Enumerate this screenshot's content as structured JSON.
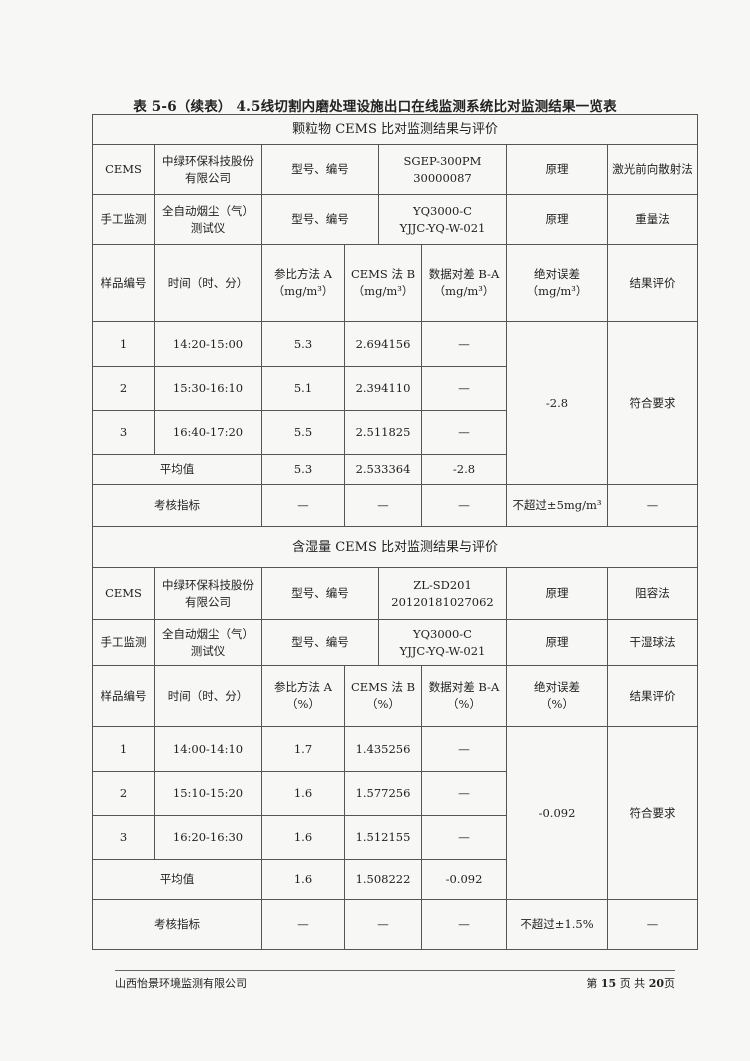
{
  "title": "表 5-6（续表） 4.5线切割内磨处理设施出口在线监测系统比对监测结果一览表",
  "sections": [
    {
      "heading": "颗粒物 CEMS 比对监测结果与评价",
      "cems": {
        "label": "CEMS",
        "company": "中绿环保科技股份有限公司",
        "model_label": "型号、编号",
        "model": "SGEP-300PM\n30000087",
        "principle_label": "原理",
        "principle": "激光前向散射法"
      },
      "manual": {
        "label": "手工监测",
        "instrument": "全自动烟尘（气）测试仪",
        "model_label": "型号、编号",
        "model": "YQ3000-C\nYJJC-YQ-W-021",
        "principle_label": "原理",
        "principle": "重量法"
      },
      "headers": [
        "样品编号",
        "时间（时、分）",
        "参比方法 A\n（mg/m³）",
        "CEMS 法 B\n（mg/m³）",
        "数据对差 B-A\n（mg/m³）",
        "绝对误差\n（mg/m³）",
        "结果评价"
      ],
      "rows": [
        {
          "no": "1",
          "time": "14:20-15:00",
          "a": "5.3",
          "b": "2.694156",
          "diff": "—"
        },
        {
          "no": "2",
          "time": "15:30-16:10",
          "a": "5.1",
          "b": "2.394110",
          "diff": "—"
        },
        {
          "no": "3",
          "time": "16:40-17:20",
          "a": "5.5",
          "b": "2.511825",
          "diff": "—"
        }
      ],
      "abs_error": "-2.8",
      "evaluation": "符合要求",
      "avg": {
        "label": "平均值",
        "a": "5.3",
        "b": "2.533364",
        "diff": "-2.8"
      },
      "check": {
        "label": "考核指标",
        "a": "—",
        "b": "—",
        "diff": "—",
        "limit": "不超过±5mg/m³",
        "eval": "—"
      }
    },
    {
      "heading": "含湿量 CEMS 比对监测结果与评价",
      "cems": {
        "label": "CEMS",
        "company": "中绿环保科技股份有限公司",
        "model_label": "型号、编号",
        "model": "ZL-SD201\n20120181027062",
        "principle_label": "原理",
        "principle": "阻容法"
      },
      "manual": {
        "label": "手工监测",
        "instrument": "全自动烟尘（气）测试仪",
        "model_label": "型号、编号",
        "model": "YQ3000-C\nYJJC-YQ-W-021",
        "principle_label": "原理",
        "principle": "干湿球法"
      },
      "headers": [
        "样品编号",
        "时间（时、分）",
        "参比方法 A\n（%）",
        "CEMS 法 B\n（%）",
        "数据对差 B-A\n（%）",
        "绝对误差\n（%）",
        "结果评价"
      ],
      "rows": [
        {
          "no": "1",
          "time": "14:00-14:10",
          "a": "1.7",
          "b": "1.435256",
          "diff": "—"
        },
        {
          "no": "2",
          "time": "15:10-15:20",
          "a": "1.6",
          "b": "1.577256",
          "diff": "—"
        },
        {
          "no": "3",
          "time": "16:20-16:30",
          "a": "1.6",
          "b": "1.512155",
          "diff": "—"
        }
      ],
      "abs_error": "-0.092",
      "evaluation": "符合要求",
      "avg": {
        "label": "平均值",
        "a": "1.6",
        "b": "1.508222",
        "diff": "-0.092"
      },
      "check": {
        "label": "考核指标",
        "a": "—",
        "b": "—",
        "diff": "—",
        "limit": "不超过±1.5%",
        "eval": "—"
      }
    }
  ],
  "footer": {
    "company": "山西怡景环境监测有限公司",
    "page_prefix": "第",
    "page": "15",
    "page_mid": "页 共",
    "total": "20",
    "page_suffix": "页"
  }
}
